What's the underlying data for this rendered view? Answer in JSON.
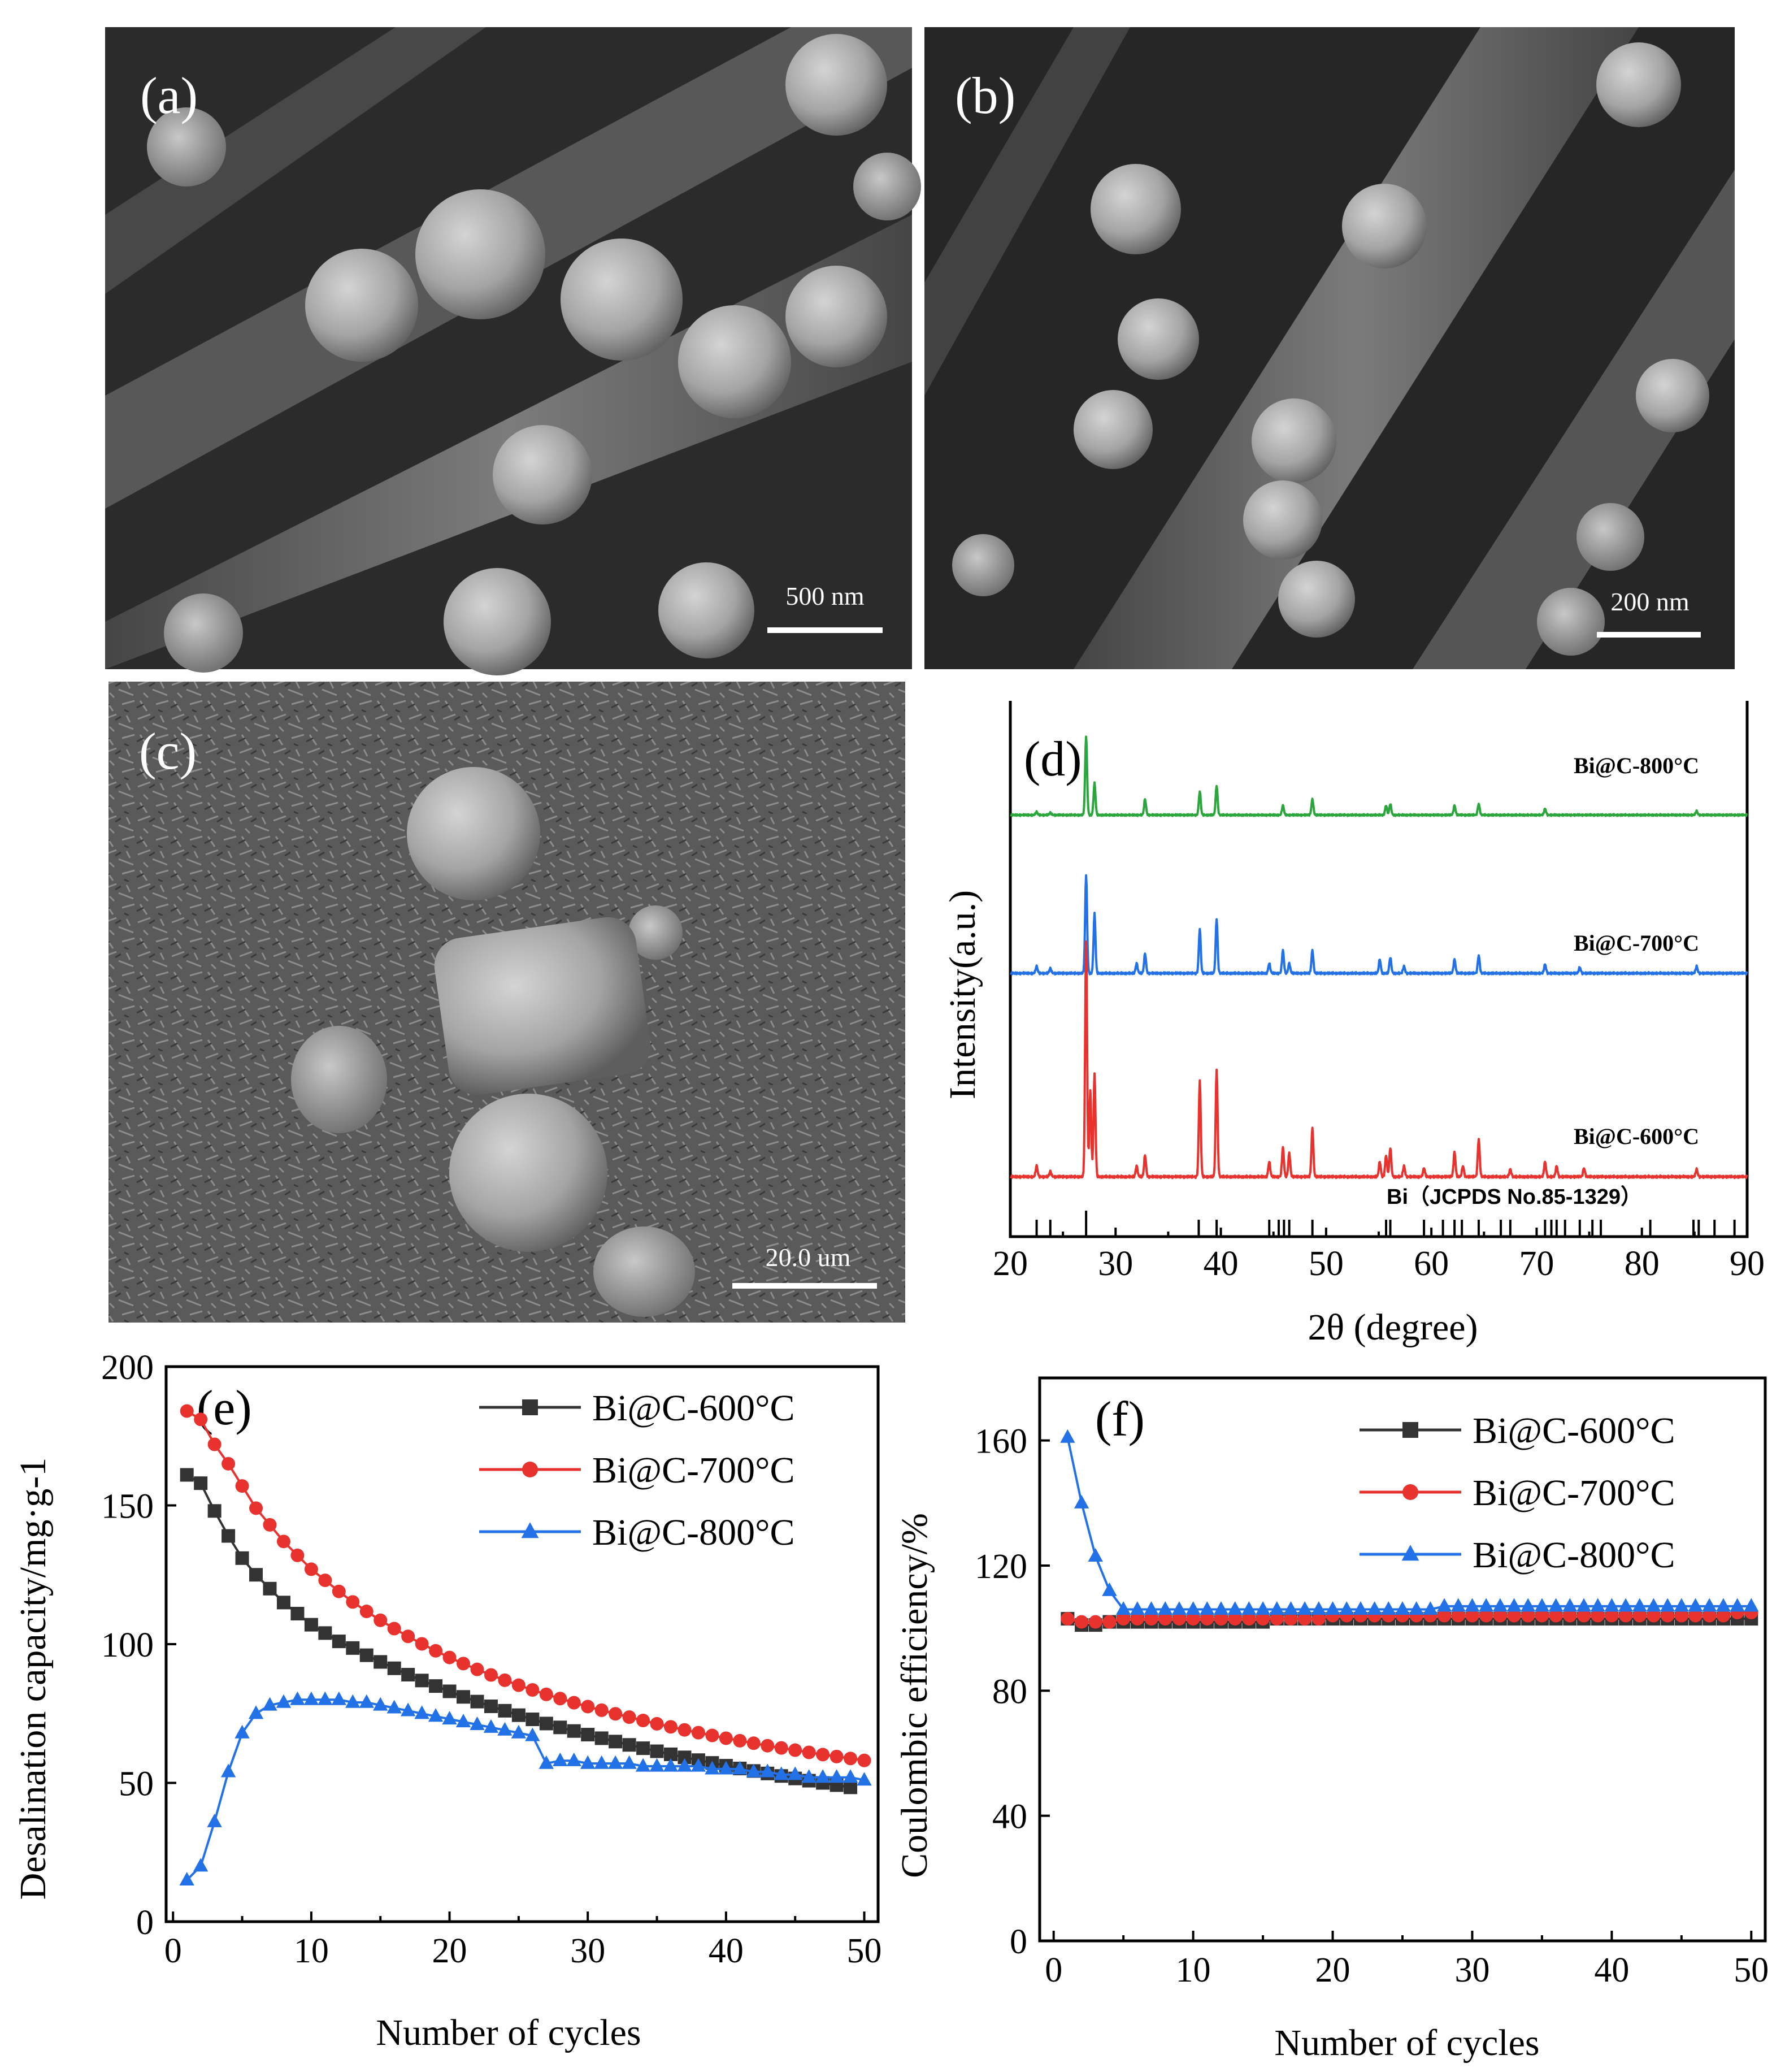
{
  "colors": {
    "black": "#333333",
    "red": "#e8322e",
    "blue": "#2371e6",
    "green": "#2aa63c"
  },
  "sem": {
    "a": {
      "label": "(a)",
      "scale": "500 nm"
    },
    "b": {
      "label": "(b)",
      "scale": "200 nm"
    },
    "c": {
      "label": "(c)",
      "scale": "20.0 um"
    }
  },
  "chart_data": [
    {
      "panel": "(d)",
      "type": "line",
      "xlabel": "2θ (degree)",
      "ylabel": "Intensity(a.u.)",
      "xlim": [
        20,
        90
      ],
      "xticks": [
        "20",
        "30",
        "40",
        "50",
        "60",
        "70",
        "80",
        "90"
      ],
      "series": [
        {
          "name": "Bi@C-800°C",
          "color": "#2aa63c",
          "offset": 2.0,
          "peaks": [
            [
              22.5,
              0.04
            ],
            [
              23.8,
              0.03
            ],
            [
              27.2,
              1.0
            ],
            [
              28.0,
              0.4
            ],
            [
              32.8,
              0.2
            ],
            [
              38.0,
              0.3
            ],
            [
              39.6,
              0.37
            ],
            [
              45.9,
              0.12
            ],
            [
              48.7,
              0.2
            ],
            [
              55.7,
              0.12
            ],
            [
              56.1,
              0.14
            ],
            [
              62.2,
              0.12
            ],
            [
              64.5,
              0.14
            ],
            [
              70.8,
              0.08
            ],
            [
              85.2,
              0.05
            ]
          ]
        },
        {
          "name": "Bi@C-700°C",
          "color": "#2371e6",
          "offset": 1.0,
          "peaks": [
            [
              22.5,
              0.07
            ],
            [
              23.8,
              0.05
            ],
            [
              27.2,
              1.0
            ],
            [
              28.0,
              0.6
            ],
            [
              32.0,
              0.1
            ],
            [
              32.8,
              0.2
            ],
            [
              38.0,
              0.45
            ],
            [
              39.6,
              0.55
            ],
            [
              44.6,
              0.1
            ],
            [
              45.9,
              0.23
            ],
            [
              46.5,
              0.1
            ],
            [
              48.7,
              0.23
            ],
            [
              55.1,
              0.14
            ],
            [
              56.1,
              0.16
            ],
            [
              57.4,
              0.07
            ],
            [
              62.2,
              0.14
            ],
            [
              64.5,
              0.18
            ],
            [
              70.8,
              0.09
            ],
            [
              74.1,
              0.06
            ],
            [
              85.2,
              0.07
            ]
          ]
        },
        {
          "name": "Bi@C-600°C",
          "color": "#e8322e",
          "offset": 0.0,
          "peaks": [
            [
              22.5,
              0.1
            ],
            [
              23.8,
              0.05
            ],
            [
              27.2,
              2.2
            ],
            [
              27.6,
              0.8
            ],
            [
              28.0,
              0.95
            ],
            [
              32.0,
              0.1
            ],
            [
              32.8,
              0.2
            ],
            [
              38.0,
              0.9
            ],
            [
              39.6,
              1.0
            ],
            [
              44.6,
              0.14
            ],
            [
              45.9,
              0.27
            ],
            [
              46.5,
              0.22
            ],
            [
              48.7,
              0.45
            ],
            [
              55.1,
              0.14
            ],
            [
              55.7,
              0.2
            ],
            [
              56.1,
              0.27
            ],
            [
              57.4,
              0.1
            ],
            [
              59.3,
              0.08
            ],
            [
              62.2,
              0.23
            ],
            [
              63.0,
              0.1
            ],
            [
              64.5,
              0.35
            ],
            [
              67.5,
              0.07
            ],
            [
              70.8,
              0.14
            ],
            [
              71.9,
              0.1
            ],
            [
              74.5,
              0.08
            ],
            [
              85.2,
              0.07
            ]
          ]
        }
      ],
      "reference": {
        "name": "Bi（JCPDS No.85-1329）",
        "positions": [
          22.5,
          23.8,
          27.2,
          37.9,
          39.6,
          44.6,
          45.5,
          46.0,
          46.5,
          48.7,
          55.7,
          56.1,
          59.3,
          61.1,
          62.2,
          62.9,
          64.5,
          66.6,
          67.5,
          70.8,
          71.4,
          71.9,
          72.7,
          74.1,
          75.3,
          76.1,
          80.8,
          84.9,
          85.4,
          86.9,
          88.8
        ]
      }
    },
    {
      "panel": "(e)",
      "type": "line",
      "xlabel": "Number of cycles",
      "ylabel": "Desalination capacity/mg·g-1",
      "xlim": [
        -0.5,
        51
      ],
      "ylim": [
        0,
        200
      ],
      "xticks": [
        0,
        10,
        20,
        30,
        40,
        50
      ],
      "yticks": [
        0,
        50,
        100,
        150,
        200
      ],
      "series": [
        {
          "name": "Bi@C-600°C",
          "marker": "square",
          "color": "#333333",
          "x": [
            1,
            2,
            3,
            4,
            5,
            6,
            7,
            8,
            9,
            10,
            11,
            12,
            13,
            14,
            15,
            16,
            17,
            18,
            19,
            20,
            21,
            22,
            23,
            24,
            25,
            26,
            27,
            28,
            29,
            30,
            31,
            32,
            33,
            34,
            35,
            36,
            37,
            38,
            39,
            40,
            41,
            42,
            43,
            44,
            45,
            46,
            47,
            48,
            49
          ],
          "y": [
            161,
            158,
            148,
            139,
            131,
            125,
            120,
            115,
            111,
            107,
            104,
            101,
            98.6,
            96,
            93.6,
            91.3,
            89,
            86.9,
            84.9,
            83,
            81,
            79.3,
            77.6,
            76,
            74.4,
            72.9,
            71.4,
            70,
            68.7,
            67.4,
            66.1,
            64.9,
            63.7,
            62.5,
            61.4,
            60.3,
            59.2,
            58.2,
            57.2,
            56.2,
            55.2,
            54.3,
            53.4,
            52.5,
            51.6,
            50.8,
            50,
            49.2,
            48.4
          ]
        },
        {
          "name": "Bi@C-700°C",
          "marker": "circle",
          "color": "#e8322e",
          "x": [
            1,
            2,
            3,
            4,
            5,
            6,
            7,
            8,
            9,
            10,
            11,
            12,
            13,
            14,
            15,
            16,
            17,
            18,
            19,
            20,
            21,
            22,
            23,
            24,
            25,
            26,
            27,
            28,
            29,
            30,
            31,
            32,
            33,
            34,
            35,
            36,
            37,
            38,
            39,
            40,
            41,
            42,
            43,
            44,
            45,
            46,
            47,
            48,
            49,
            50
          ],
          "y": [
            184,
            181,
            172,
            165,
            157,
            149,
            143,
            137,
            132,
            127,
            123,
            119,
            115.2,
            111.8,
            108.6,
            105.6,
            102.8,
            100.1,
            97.6,
            95.2,
            93,
            90.9,
            88.9,
            87,
            85.2,
            83.5,
            81.9,
            80.4,
            78.9,
            77.5,
            76.2,
            74.9,
            73.7,
            72.5,
            71.3,
            70.2,
            69.1,
            68.1,
            67.1,
            66.1,
            65.2,
            64.3,
            63.4,
            62.6,
            61.8,
            61,
            60.2,
            59.5,
            58.8,
            58.1
          ]
        },
        {
          "name": "Bi@C-800°C",
          "marker": "triangle",
          "color": "#2371e6",
          "x": [
            1,
            2,
            3,
            4,
            5,
            6,
            7,
            8,
            9,
            10,
            11,
            12,
            13,
            14,
            15,
            16,
            17,
            18,
            19,
            20,
            21,
            22,
            23,
            24,
            25,
            26,
            27,
            28,
            29,
            30,
            31,
            32,
            33,
            34,
            35,
            36,
            37,
            38,
            39,
            40,
            41,
            42,
            43,
            44,
            45,
            46,
            47,
            48,
            49,
            50
          ],
          "y": [
            15,
            20,
            36,
            54,
            68,
            75,
            78,
            79,
            80,
            80,
            80,
            80,
            79,
            79,
            78,
            77,
            76,
            75,
            74,
            73,
            72,
            71,
            70,
            69,
            68,
            67,
            57,
            58,
            58,
            57,
            57,
            57,
            57,
            56,
            56,
            56,
            56,
            56,
            55,
            55,
            55,
            54,
            54,
            53,
            53,
            52,
            52,
            52,
            52,
            51
          ]
        }
      ]
    },
    {
      "panel": "(f)",
      "type": "line",
      "xlabel": "Number of cycles",
      "ylabel": "Coulombic efficiency/%",
      "xlim": [
        -1,
        51
      ],
      "ylim": [
        0,
        180
      ],
      "xticks": [
        0,
        10,
        20,
        30,
        40,
        50
      ],
      "yticks": [
        0,
        40,
        80,
        120,
        160
      ],
      "series": [
        {
          "name": "Bi@C-600°C",
          "marker": "square",
          "color": "#333333",
          "x": [
            1,
            2,
            3,
            4,
            5,
            6,
            7,
            8,
            9,
            10,
            11,
            12,
            13,
            14,
            15,
            16,
            17,
            18,
            19,
            20,
            21,
            22,
            23,
            24,
            25,
            26,
            27,
            28,
            29,
            30,
            31,
            32,
            33,
            34,
            35,
            36,
            37,
            38,
            39,
            40,
            41,
            42,
            43,
            44,
            45,
            46,
            47,
            48,
            49,
            50
          ],
          "y": [
            103,
            101,
            101,
            102,
            102,
            102,
            102,
            102,
            102,
            102,
            102,
            102,
            102,
            102,
            102,
            103,
            103,
            103,
            103,
            103,
            103,
            103,
            103,
            103,
            103,
            103,
            103,
            103,
            103,
            103,
            103,
            103,
            103,
            103,
            103,
            103,
            103,
            103,
            103,
            103,
            103,
            103,
            103,
            103,
            103,
            103,
            103,
            103,
            103,
            103
          ]
        },
        {
          "name": "Bi@C-700°C",
          "marker": "circle",
          "color": "#e8322e",
          "x": [
            1,
            2,
            3,
            4,
            5,
            6,
            7,
            8,
            9,
            10,
            11,
            12,
            13,
            14,
            15,
            16,
            17,
            18,
            19,
            20,
            21,
            22,
            23,
            24,
            25,
            26,
            27,
            28,
            29,
            30,
            31,
            32,
            33,
            34,
            35,
            36,
            37,
            38,
            39,
            40,
            41,
            42,
            43,
            44,
            45,
            46,
            47,
            48,
            49,
            50
          ],
          "y": [
            103,
            102,
            102,
            102,
            103,
            103,
            103,
            103,
            103,
            103,
            103,
            103,
            103,
            103,
            103,
            103,
            103,
            103,
            103,
            104,
            104,
            104,
            104,
            104,
            104,
            104,
            104,
            104,
            104,
            104,
            104,
            104,
            104,
            104,
            104,
            104,
            104,
            104,
            104,
            104,
            104,
            104,
            104,
            104,
            104,
            104,
            104,
            104,
            105,
            105
          ]
        },
        {
          "name": "Bi@C-800°C",
          "marker": "triangle",
          "color": "#2371e6",
          "x": [
            1,
            2,
            3,
            4,
            5,
            6,
            7,
            8,
            9,
            10,
            11,
            12,
            13,
            14,
            15,
            16,
            17,
            18,
            19,
            20,
            21,
            22,
            23,
            24,
            25,
            26,
            27,
            28,
            29,
            30,
            31,
            32,
            33,
            34,
            35,
            36,
            37,
            38,
            39,
            40,
            41,
            42,
            43,
            44,
            45,
            46,
            47,
            48,
            49,
            50
          ],
          "y": [
            161,
            140,
            123,
            112,
            106,
            106,
            106,
            106,
            106,
            106,
            106,
            106,
            106,
            106,
            106,
            106,
            106,
            106,
            106,
            106,
            106,
            106,
            106,
            106,
            106,
            106,
            106,
            107,
            107,
            107,
            107,
            107,
            107,
            107,
            107,
            107,
            107,
            107,
            107,
            107,
            107,
            107,
            107,
            107,
            107,
            107,
            107,
            107,
            107,
            107
          ]
        }
      ]
    }
  ]
}
